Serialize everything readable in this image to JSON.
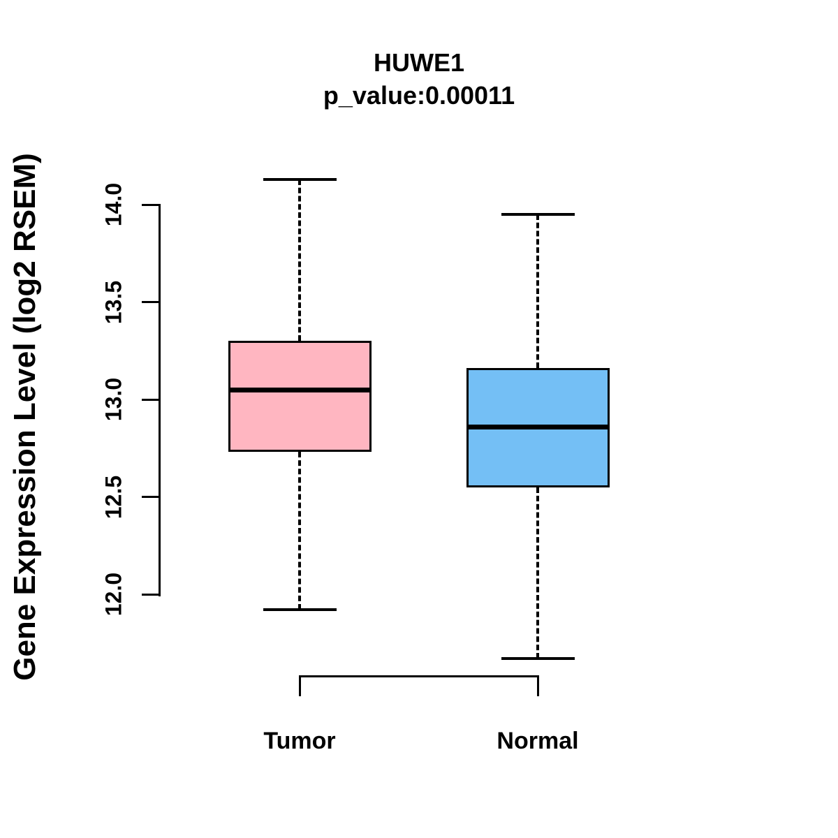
{
  "title": "HUWE1",
  "subtitle": "p_value:0.00011",
  "y_axis_label": "Gene Expression Level (log2 RSEM)",
  "chart_data": {
    "type": "boxplot",
    "title": "HUWE1",
    "subtitle": "p_value:0.00011",
    "xlabel": "",
    "ylabel": "Gene Expression Level (log2 RSEM)",
    "ylim": [
      12.0,
      14.0
    ],
    "y_ticks": [
      12.0,
      12.5,
      13.0,
      13.5,
      14.0
    ],
    "y_tick_labels": [
      "12.0",
      "12.5",
      "13.0",
      "13.5",
      "14.0"
    ],
    "categories": [
      "Tumor",
      "Normal"
    ],
    "grid": false,
    "legend": "none",
    "whisker_style": "dashed",
    "series": [
      {
        "name": "Tumor",
        "color": "#FFB6C1",
        "lower_whisker": 11.92,
        "q1": 12.73,
        "median": 13.05,
        "q3": 13.3,
        "upper_whisker": 14.13
      },
      {
        "name": "Normal",
        "color": "#74BFF5",
        "lower_whisker": 11.67,
        "q1": 12.55,
        "median": 12.86,
        "q3": 13.16,
        "upper_whisker": 13.95
      }
    ]
  },
  "colors": {
    "line": "#000000",
    "background": "#FFFFFF",
    "tumor_box": "#FFB6C1",
    "normal_box": "#74BFF5"
  }
}
